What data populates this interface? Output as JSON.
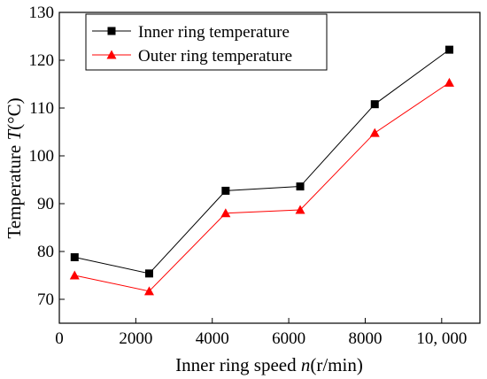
{
  "chart_data": {
    "type": "line",
    "title": "",
    "xlabel": "Inner ring speed n(r/min)",
    "xlabel_parts": {
      "prefix": "Inner ring speed ",
      "var": "n",
      "suffix": "(r/min)"
    },
    "ylabel": "Temperature T(°C)",
    "ylabel_parts": {
      "prefix": "Temperature ",
      "var": "T",
      "suffix": "(°C)"
    },
    "xlim": [
      0,
      11000
    ],
    "ylim": [
      65,
      130
    ],
    "x_ticks": [
      {
        "value": 0,
        "label": "0"
      },
      {
        "value": 2000,
        "label": "2000"
      },
      {
        "value": 4000,
        "label": "4000"
      },
      {
        "value": 6000,
        "label": "6000"
      },
      {
        "value": 8000,
        "label": "8000"
      },
      {
        "value": 10000,
        "label": "10, 000"
      }
    ],
    "y_ticks": [
      {
        "value": 70,
        "label": "70"
      },
      {
        "value": 80,
        "label": "80"
      },
      {
        "value": 90,
        "label": "90"
      },
      {
        "value": 100,
        "label": "100"
      },
      {
        "value": 110,
        "label": "110"
      },
      {
        "value": 120,
        "label": "120"
      },
      {
        "value": 130,
        "label": "130"
      }
    ],
    "grid": false,
    "legend_position": "top-left",
    "series": [
      {
        "name": "Inner ring temperature",
        "color": "#000000",
        "marker": "square",
        "x": [
          400,
          2350,
          4350,
          6300,
          8250,
          10200
        ],
        "y": [
          78.8,
          75.4,
          92.7,
          93.6,
          110.8,
          122.2
        ]
      },
      {
        "name": "Outer ring temperature",
        "color": "#ff0000",
        "marker": "triangle",
        "x": [
          400,
          2350,
          4350,
          6300,
          8250,
          10200
        ],
        "y": [
          75.0,
          71.7,
          88.0,
          88.7,
          104.8,
          115.3
        ]
      }
    ]
  }
}
